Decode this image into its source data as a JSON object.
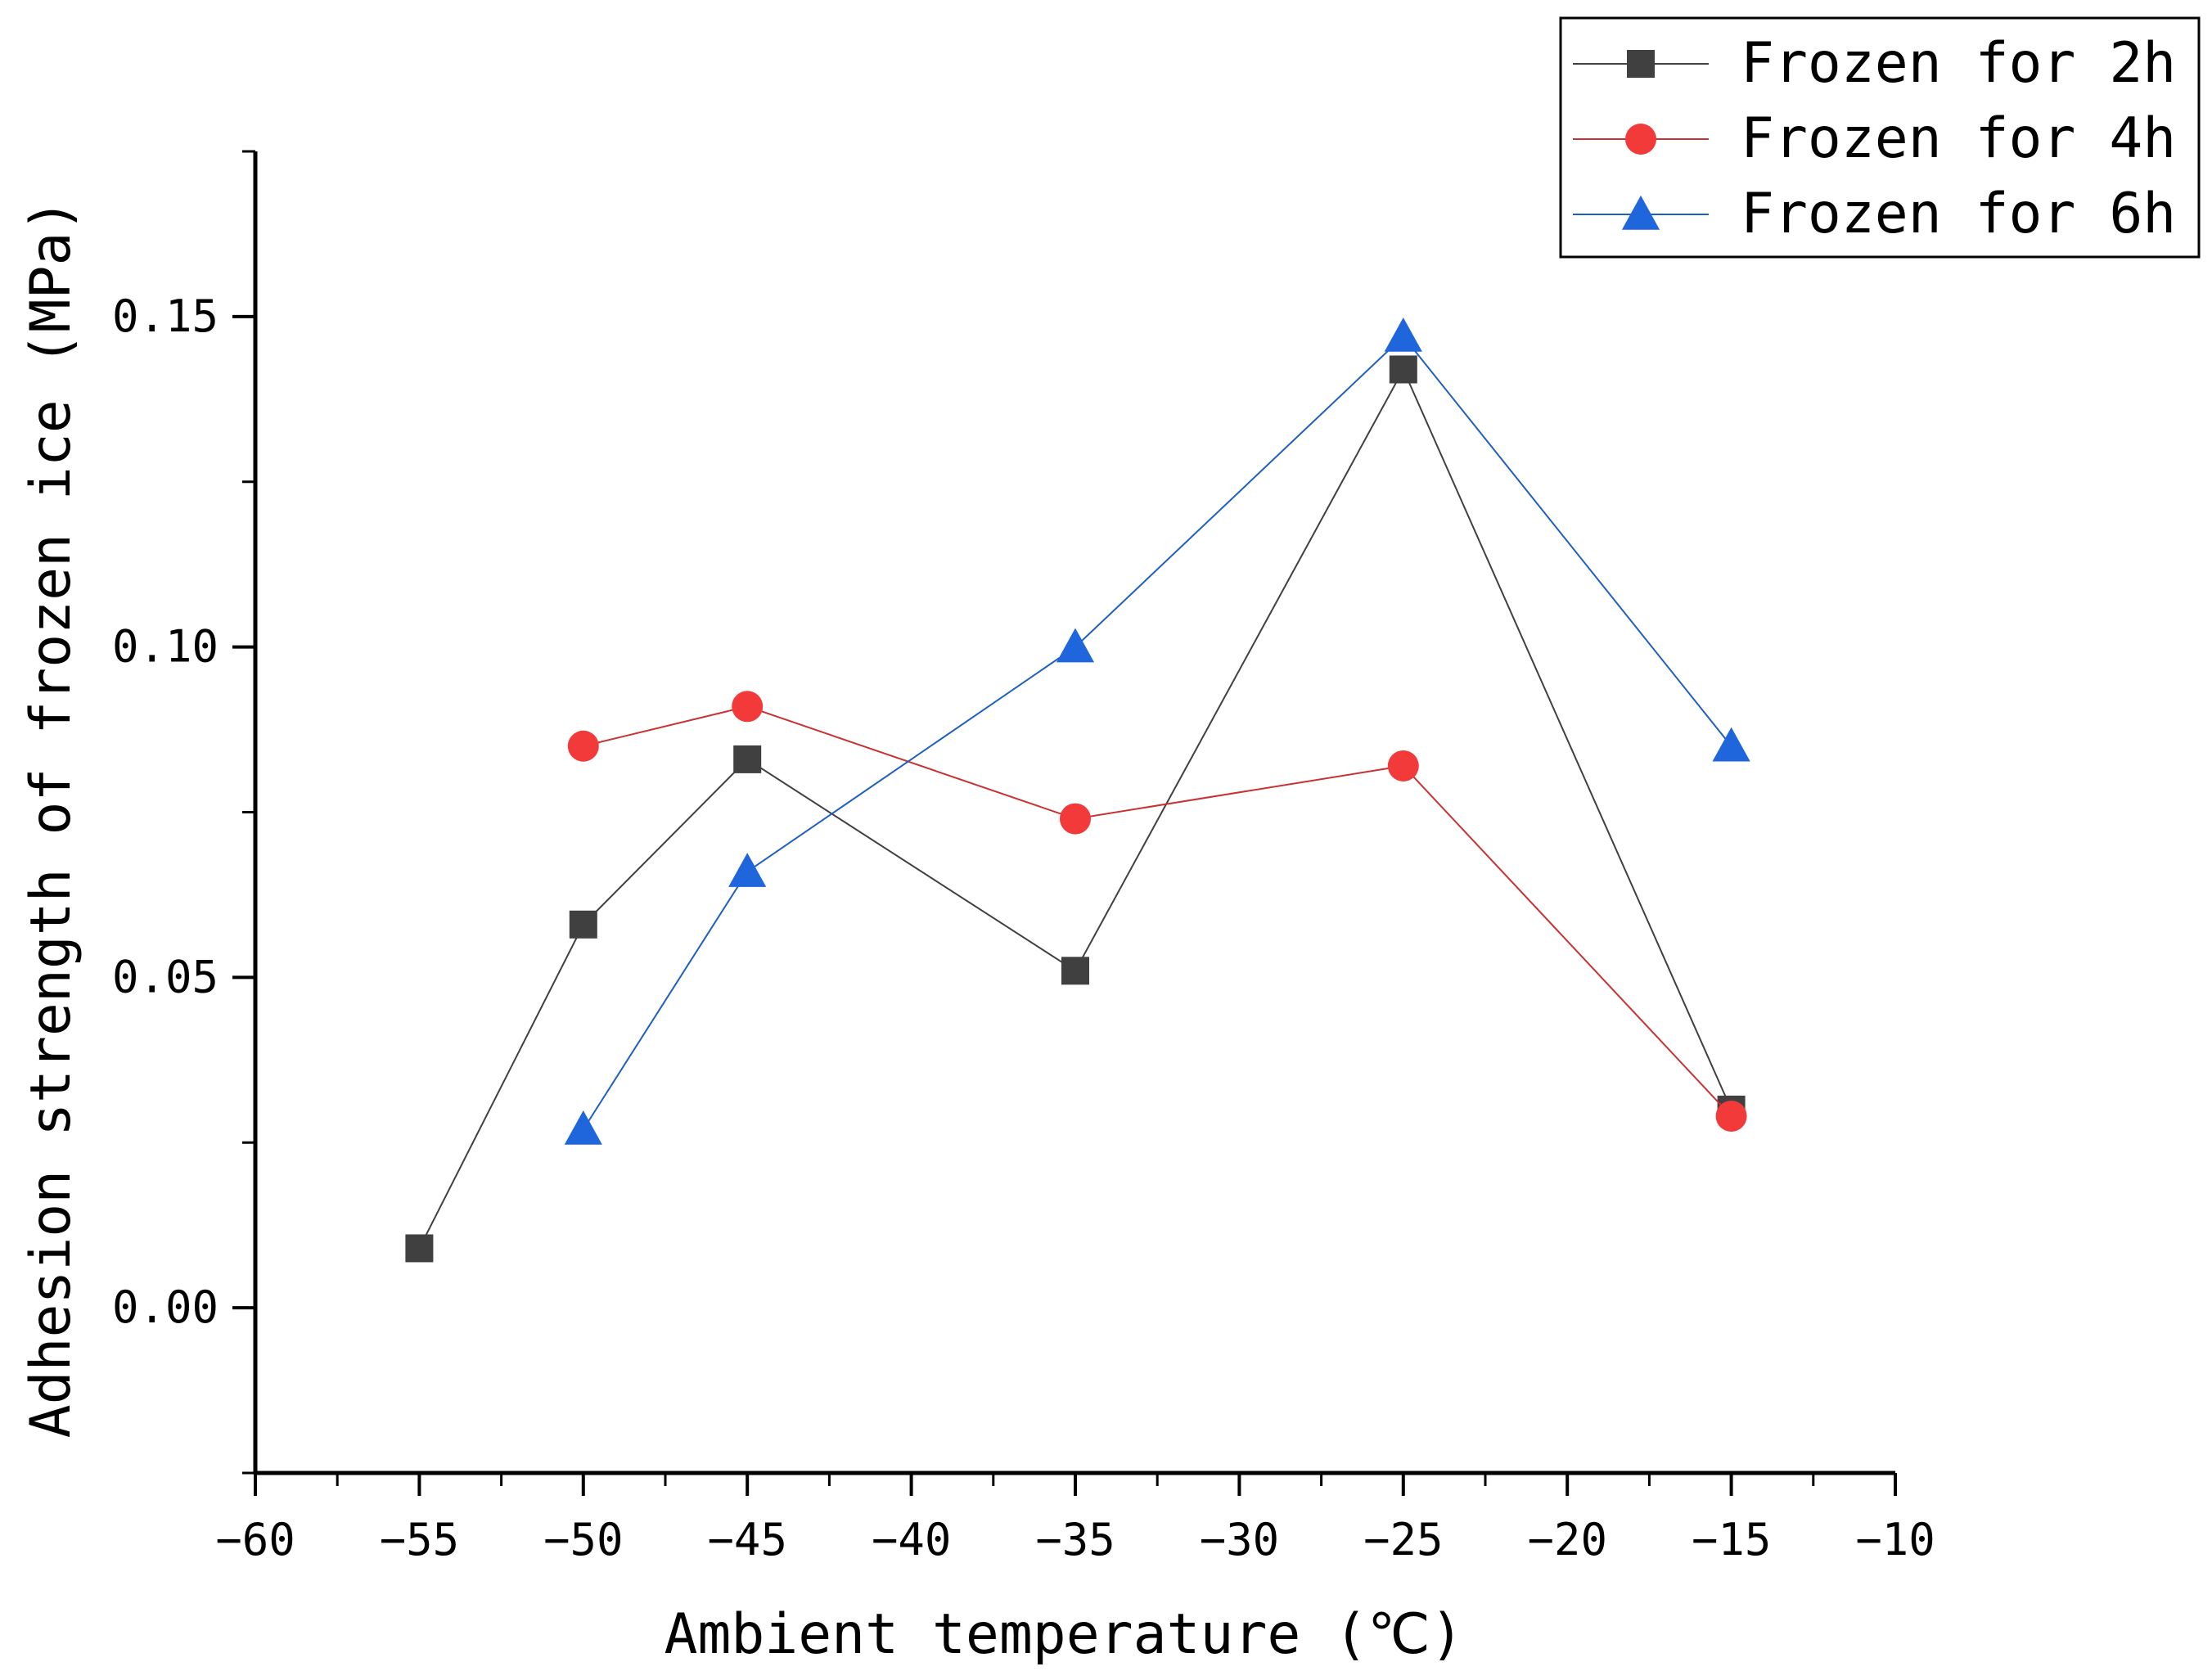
{
  "chart_data": {
    "type": "line",
    "title": "",
    "xlabel": "Ambient temperature (℃)",
    "ylabel": "Adhesion strength of frozen ice (MPa)",
    "xlim": [
      -60,
      -10
    ],
    "ylim": [
      -0.025,
      0.175
    ],
    "x_ticks": [
      -60,
      -55,
      -50,
      -45,
      -40,
      -35,
      -30,
      -25,
      -20,
      -15,
      -10
    ],
    "x_tick_labels": [
      "−60",
      "−55",
      "−50",
      "−45",
      "−40",
      "−35",
      "−30",
      "−25",
      "−20",
      "−15",
      "−10"
    ],
    "y_ticks": [
      0.0,
      0.05,
      0.1,
      0.15
    ],
    "y_tick_labels": [
      "0.00",
      "0.05",
      "0.10",
      "0.15"
    ],
    "legend_position": "top-right",
    "series": [
      {
        "name": "Frozen for 2h",
        "marker": "square",
        "color": "#404040",
        "line_color": "#404040",
        "x": [
          -55,
          -50,
          -45,
          -35,
          -25,
          -15
        ],
        "values": [
          0.009,
          0.058,
          0.083,
          0.051,
          0.142,
          0.03
        ]
      },
      {
        "name": "Frozen for 4h",
        "marker": "circle",
        "color": "#f23a3a",
        "line_color": "#c83232",
        "x": [
          -50,
          -45,
          -35,
          -25,
          -15
        ],
        "values": [
          0.085,
          0.091,
          0.074,
          0.082,
          0.029
        ]
      },
      {
        "name": "Frozen for 6h",
        "marker": "triangle",
        "color": "#1f66dd",
        "line_color": "#1f5fbf",
        "x": [
          -50,
          -45,
          -35,
          -25,
          -15
        ],
        "values": [
          0.027,
          0.066,
          0.1,
          0.147,
          0.085
        ]
      }
    ]
  }
}
